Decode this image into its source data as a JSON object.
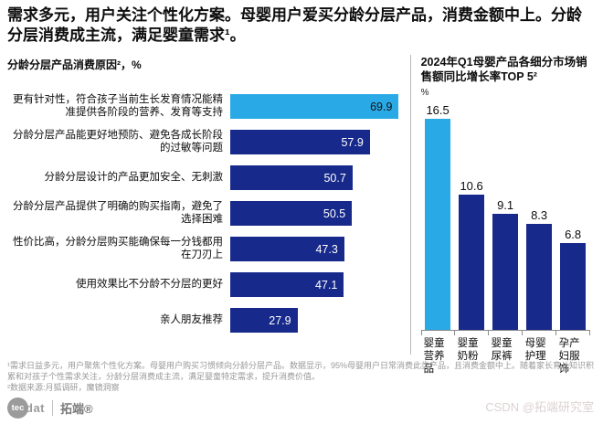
{
  "headline": "需求多元，用户关注个性化方案。母婴用户爱买分龄分层产品，消费金额中上。分龄分层消费成主流，满足婴童需求¹。",
  "colors": {
    "accent_light_blue": "#29A9E5",
    "accent_navy": "#17298B",
    "value_on_light": "#111111",
    "value_on_dark": "#ffffff"
  },
  "chart_data": [
    {
      "type": "bar",
      "orientation": "horizontal",
      "title": "分龄分层产品消费原因²，%",
      "categories": [
        "更有针对性，符合孩子当前生长发育情况能精准提供各阶段的营养、发育等支持",
        "分龄分层产品能更好地预防、避免各成长阶段的过敏等问题",
        "分龄分层设计的产品更加安全、无刺激",
        "分龄分层产品提供了明确的购买指南，避免了选择困难",
        "性价比高，分龄分层购买能确保每一分钱都用在刀刃上",
        "使用效果比不分龄不分层的更好",
        "亲人朋友推荐"
      ],
      "values": [
        69.9,
        57.9,
        50.7,
        50.5,
        47.3,
        47.1,
        27.9
      ],
      "xlim": [
        0,
        72
      ],
      "highlight_index": 0,
      "grid": false,
      "legend": "none"
    },
    {
      "type": "bar",
      "orientation": "vertical",
      "title": "2024年Q1母婴产品各细分市场销售额同比增长率TOP 5²",
      "ylabel": "%",
      "categories": [
        "婴童营养品",
        "婴童奶粉",
        "婴童尿裤",
        "母婴护理",
        "孕产妇服饰"
      ],
      "values": [
        16.5,
        10.6,
        9.1,
        8.3,
        6.8
      ],
      "ylim": [
        0,
        17
      ],
      "highlight_index": 0,
      "grid": false,
      "legend": "none"
    }
  ],
  "footnotes": {
    "line1": "¹需求日益多元，用户聚焦个性化方案。母婴用户购买习惯倾向分龄分层产品。数据显示，95%母婴用户日常消费此类产品，且消费金额中上。随着家长育儿知识积累和对孩子个性需求关注，分龄分层消费成主流，满足婴童特定需求，提升消费价值。",
    "line2": "²数据来源:月狐调研，魔镜洞察"
  },
  "footer": {
    "logo_tec": "tec",
    "logo_dat": "dat",
    "brand": "拓端®",
    "watermark": "CSDN @拓端研究室"
  }
}
